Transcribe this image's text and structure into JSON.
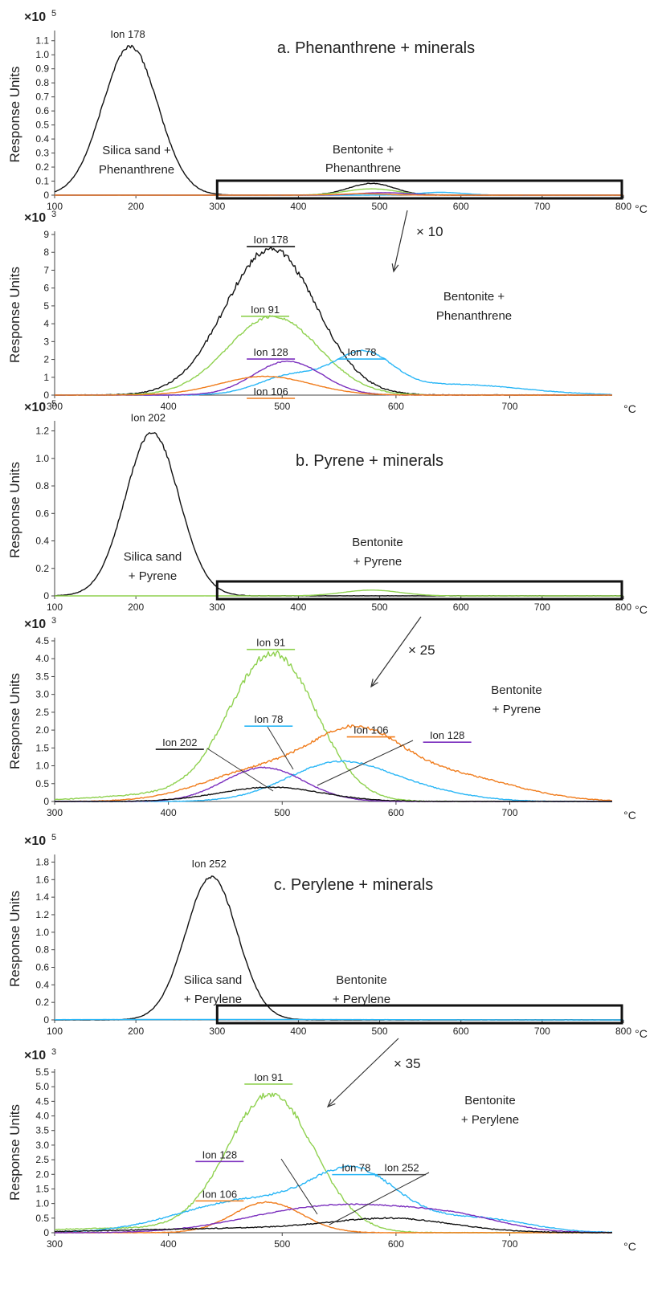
{
  "ylabel": "Response Units",
  "x_unit": "°C",
  "chart_data": [
    {
      "type": "line",
      "title": "a. Phenanthrene + minerals",
      "ylabel": "Response Units",
      "y_scale_label": "×10",
      "y_scale_exp": "5",
      "x_unit": "°C",
      "xlim": [
        100,
        800
      ],
      "ylim": [
        0,
        1.15
      ],
      "x_ticks": [
        "100",
        "200",
        "300",
        "400",
        "500",
        "600",
        "700",
        "800"
      ],
      "y_ticks": [
        "0",
        "0.1",
        "0.2",
        "0.3",
        "0.4",
        "0.5",
        "0.6",
        "0.7",
        "0.8",
        "0.9",
        "1.0",
        "1.1"
      ],
      "region_labels": [
        "Silica sand +",
        "Phenanthrene",
        "Bentonite +",
        "Phenanthrene"
      ],
      "zoom_box": [
        300,
        800
      ],
      "peak_labels": [
        {
          "text": "Ion 178",
          "x": 190,
          "y": 1.12
        }
      ],
      "series": [
        {
          "name": "Ion 178",
          "color": "#111111",
          "peaks": [
            [
              193,
              1.06,
              34
            ],
            [
              490,
              0.084,
              28
            ]
          ],
          "noise": 0.008
        },
        {
          "name": "Ion 91",
          "color": "#8fd14f",
          "peaks": [
            [
              490,
              0.045,
              32
            ]
          ],
          "noise": 0.002
        },
        {
          "name": "Ion 78",
          "color": "#29b6f6",
          "peaks": [
            [
              575,
              0.02,
              28
            ]
          ],
          "noise": 0.002
        },
        {
          "name": "Ion 128",
          "color": "#7b2fbe",
          "peaks": [
            [
              505,
              0.018,
              30
            ]
          ],
          "noise": 0.002
        },
        {
          "name": "Ion 106",
          "color": "#f07c1c",
          "peaks": [
            [
              480,
              0.01,
              30
            ]
          ],
          "noise": 0.002
        }
      ]
    },
    {
      "type": "line",
      "ylabel": "Response Units",
      "y_scale_label": "×10",
      "y_scale_exp": "3",
      "x_unit": "°C",
      "multiplier": "× 10",
      "xlim": [
        300,
        790
      ],
      "ylim": [
        0,
        9
      ],
      "x_ticks": [
        "300",
        "400",
        "500",
        "600",
        "700"
      ],
      "y_ticks": [
        "0",
        "1",
        "2",
        "3",
        "4",
        "5",
        "6",
        "7",
        "8",
        "9"
      ],
      "region_labels": [
        "Bentonite +",
        "Phenanthrene"
      ],
      "peak_labels": [
        {
          "text": "Ion 178",
          "x": 490,
          "y": 8.5,
          "color": "#111111"
        },
        {
          "text": "Ion 91",
          "x": 485,
          "y": 4.6,
          "color": "#8fd14f"
        },
        {
          "text": "Ion 128",
          "x": 490,
          "y": 2.2,
          "color": "#7b2fbe"
        },
        {
          "text": "Ion 78",
          "x": 570,
          "y": 2.2,
          "color": "#29b6f6"
        },
        {
          "text": "Ion 106",
          "x": 490,
          "y": 0.0,
          "color": "#f07c1c"
        }
      ],
      "series": [
        {
          "name": "Ion 178",
          "color": "#111111",
          "peaks": [
            [
              490,
              8.2,
              40
            ]
          ],
          "noise": 0.12
        },
        {
          "name": "Ion 91",
          "color": "#8fd14f",
          "peaks": [
            [
              492,
              4.4,
              40
            ]
          ],
          "noise": 0.08
        },
        {
          "name": "Ion 78",
          "color": "#29b6f6",
          "peaks": [
            [
              510,
              1.1,
              30
            ],
            [
              572,
              2.1,
              25
            ],
            [
              650,
              0.6,
              60
            ]
          ],
          "noise": 0.06
        },
        {
          "name": "Ion 128",
          "color": "#7b2fbe",
          "peaks": [
            [
              505,
              1.9,
              30
            ]
          ],
          "noise": 0.05
        },
        {
          "name": "Ion 106",
          "color": "#f07c1c",
          "peaks": [
            [
              485,
              1.05,
              40
            ]
          ],
          "noise": 0.04
        }
      ]
    },
    {
      "type": "line",
      "title": "b. Pyrene + minerals",
      "ylabel": "Response Units",
      "y_scale_label": "×10",
      "y_scale_exp": "5",
      "x_unit": "°C",
      "xlim": [
        100,
        800
      ],
      "ylim": [
        0,
        1.25
      ],
      "x_ticks": [
        "100",
        "200",
        "300",
        "400",
        "500",
        "600",
        "700",
        "800"
      ],
      "y_ticks": [
        "0",
        "0.2",
        "0.4",
        "0.6",
        "0.8",
        "1.0",
        "1.2"
      ],
      "region_labels": [
        "Silica sand",
        "+ Pyrene",
        "Bentonite",
        "+ Pyrene"
      ],
      "zoom_box": [
        300,
        800
      ],
      "peak_labels": [
        {
          "text": "Ion 202",
          "x": 215,
          "y": 1.27
        }
      ],
      "series": [
        {
          "name": "Ion 202",
          "color": "#111111",
          "peaks": [
            [
              220,
              1.19,
              33
            ]
          ],
          "noise": 0.008
        },
        {
          "name": "Ion 91",
          "color": "#8fd14f",
          "peaks": [
            [
              490,
              0.042,
              35
            ]
          ],
          "noise": 0.002
        }
      ]
    },
    {
      "type": "line",
      "ylabel": "Response Units",
      "y_scale_label": "×10",
      "y_scale_exp": "3",
      "x_unit": "°C",
      "multiplier": "× 25",
      "xlim": [
        300,
        790
      ],
      "ylim": [
        0,
        4.5
      ],
      "x_ticks": [
        "300",
        "400",
        "500",
        "600",
        "700"
      ],
      "y_ticks": [
        "0",
        "0.5",
        "1.0",
        "1.5",
        "2.0",
        "2.5",
        "3.0",
        "3.5",
        "4.0",
        "4.5"
      ],
      "region_labels": [
        "Bentonite",
        "+ Pyrene"
      ],
      "peak_labels": [
        {
          "text": "Ion 91",
          "x": 490,
          "y": 4.35,
          "color": "#8fd14f"
        },
        {
          "text": "Ion 78",
          "x": 488,
          "y": 2.2,
          "color": "#29b6f6"
        },
        {
          "text": "Ion 106",
          "x": 578,
          "y": 1.9,
          "color": "#f07c1c"
        },
        {
          "text": "Ion 202",
          "x": 410,
          "y": 1.55,
          "color": "#111111"
        },
        {
          "text": "Ion 128",
          "x": 645,
          "y": 1.75,
          "color": "#7b2fbe"
        }
      ],
      "series": [
        {
          "name": "Ion 91",
          "color": "#8fd14f",
          "peaks": [
            [
              492,
              4.1,
              38
            ],
            [
              400,
              0.2,
              60
            ]
          ],
          "noise": 0.06
        },
        {
          "name": "Ion 106",
          "color": "#f07c1c",
          "peaks": [
            [
              480,
              0.85,
              50
            ],
            [
              565,
              1.7,
              40
            ],
            [
              650,
              0.7,
              55
            ]
          ],
          "noise": 0.05
        },
        {
          "name": "Ion 78",
          "color": "#29b6f6",
          "peaks": [
            [
              550,
              1.1,
              45
            ],
            [
              630,
              0.2,
              40
            ]
          ],
          "noise": 0.04
        },
        {
          "name": "Ion 128",
          "color": "#7b2fbe",
          "peaks": [
            [
              484,
              0.95,
              35
            ]
          ],
          "noise": 0.03
        },
        {
          "name": "Ion 202",
          "color": "#111111",
          "peaks": [
            [
              490,
              0.4,
              45
            ]
          ],
          "noise": 0.04
        }
      ]
    },
    {
      "type": "line",
      "title": "c. Perylene + minerals",
      "ylabel": "Response Units",
      "y_scale_label": "×10",
      "y_scale_exp": "5",
      "x_unit": "°C",
      "xlim": [
        100,
        800
      ],
      "ylim": [
        0,
        1.85
      ],
      "x_ticks": [
        "100",
        "200",
        "300",
        "400",
        "500",
        "600",
        "700",
        "800"
      ],
      "y_ticks": [
        "0",
        "0.2",
        "0.4",
        "0.6",
        "0.8",
        "1.0",
        "1.2",
        "1.4",
        "1.6",
        "1.8"
      ],
      "region_labels": [
        "Silica sand",
        "+ Perylene",
        "Bentonite",
        "+ Perylene"
      ],
      "zoom_box": [
        300,
        800
      ],
      "peak_labels": [
        {
          "text": "Ion 252",
          "x": 290,
          "y": 1.74
        }
      ],
      "series": [
        {
          "name": "Ion 252",
          "color": "#111111",
          "peaks": [
            [
              293,
              1.63,
              32
            ]
          ],
          "noise": 0.01
        },
        {
          "name": "Ion 91",
          "color": "#29b6f6",
          "peaks": [
            [
              300,
              0.005,
              200
            ]
          ],
          "noise": 0.002
        }
      ]
    },
    {
      "type": "line",
      "ylabel": "Response Units",
      "y_scale_label": "×10",
      "y_scale_exp": "3",
      "x_unit": "°C",
      "multiplier": "× 35",
      "xlim": [
        300,
        790
      ],
      "ylim": [
        0,
        5.5
      ],
      "x_ticks": [
        "300",
        "400",
        "500",
        "600",
        "700"
      ],
      "y_ticks": [
        "0",
        "0.5",
        "1.0",
        "1.5",
        "2.0",
        "2.5",
        "3.0",
        "3.5",
        "4.0",
        "4.5",
        "5.0",
        "5.5"
      ],
      "region_labels": [
        "Bentonite",
        "+ Perylene"
      ],
      "peak_labels": [
        {
          "text": "Ion 91",
          "x": 488,
          "y": 5.2,
          "color": "#8fd14f"
        },
        {
          "text": "Ion 128",
          "x": 445,
          "y": 2.55,
          "color": "#7b2fbe"
        },
        {
          "text": "Ion 78",
          "x": 565,
          "y": 2.1,
          "color": "#29b6f6"
        },
        {
          "text": "Ion 106",
          "x": 445,
          "y": 1.2,
          "color": "#f07c1c"
        },
        {
          "text": "Ion 252",
          "x": 605,
          "y": 2.1,
          "color": "#555555"
        }
      ],
      "series": [
        {
          "name": "Ion 91",
          "color": "#8fd14f",
          "peaks": [
            [
              490,
              4.7,
              38
            ],
            [
              360,
              0.15,
              80
            ]
          ],
          "noise": 0.07
        },
        {
          "name": "Ion 78",
          "color": "#29b6f6",
          "peaks": [
            [
              470,
              1.1,
              60
            ],
            [
              565,
              1.9,
              38
            ],
            [
              670,
              0.5,
              45
            ]
          ],
          "noise": 0.06
        },
        {
          "name": "Ion 106",
          "color": "#f07c1c",
          "peaks": [
            [
              487,
              1.05,
              30
            ]
          ],
          "noise": 0.04
        },
        {
          "name": "Ion 128",
          "color": "#7b2fbe",
          "peaks": [
            [
              510,
              0.55,
              60
            ],
            [
              590,
              0.65,
              60
            ],
            [
              660,
              0.3,
              40
            ]
          ],
          "noise": 0.04
        },
        {
          "name": "Ion 252",
          "color": "#111111",
          "peaks": [
            [
              420,
              0.1,
              90
            ],
            [
              560,
              0.15,
              80
            ],
            [
              600,
              0.35,
              50
            ]
          ],
          "noise": 0.06
        }
      ]
    }
  ]
}
